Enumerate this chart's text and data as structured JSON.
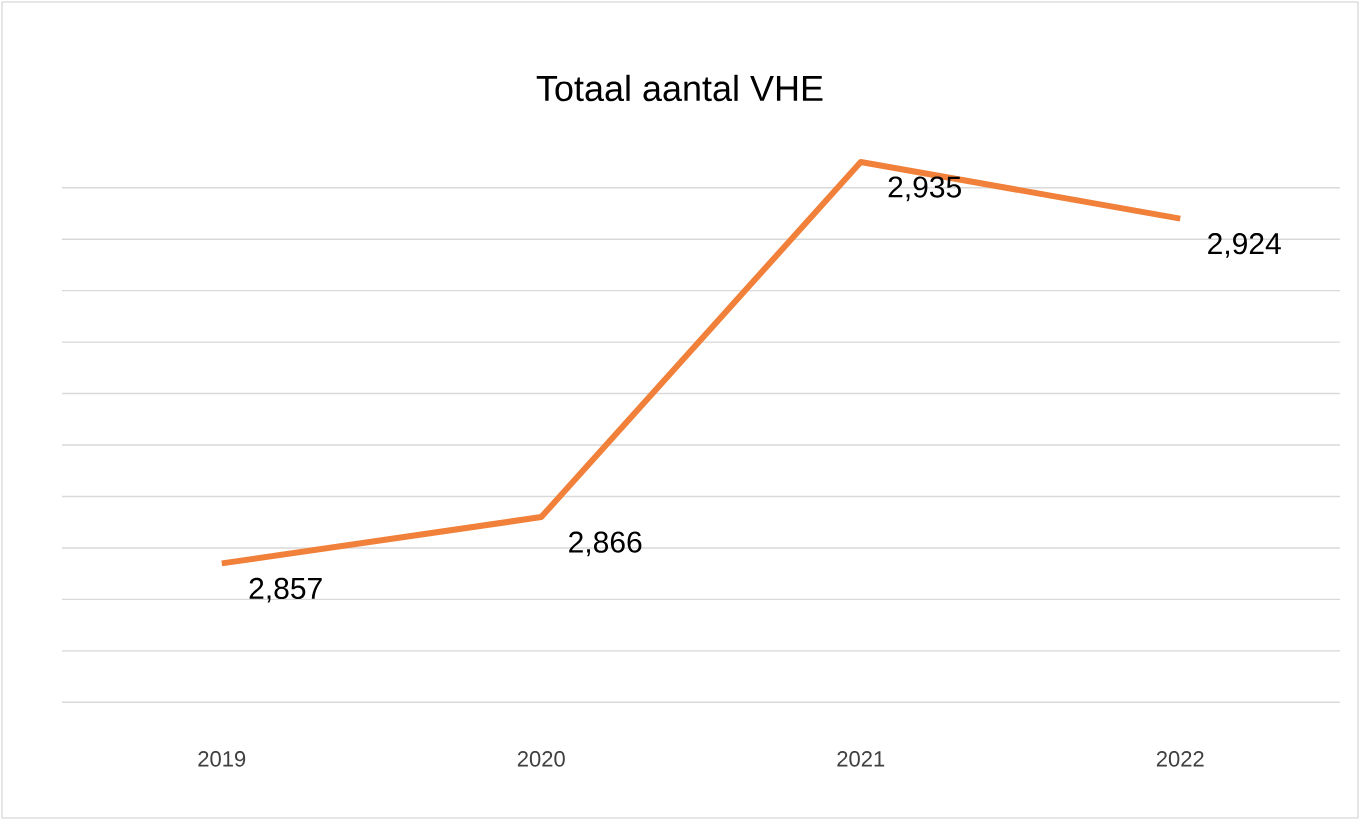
{
  "chart_data": {
    "type": "line",
    "title": "Totaal aantal VHE",
    "categories": [
      "2019",
      "2020",
      "2021",
      "2022"
    ],
    "series": [
      {
        "color": "#f0803a",
        "values": [
          2857,
          2866,
          2935,
          2924
        ],
        "value_labels": [
          "2,857",
          "2,866",
          "2,935",
          "2,924"
        ]
      }
    ],
    "tick_labels": "x",
    "grid": "y",
    "marker": "none",
    "line_style": "solid"
  }
}
